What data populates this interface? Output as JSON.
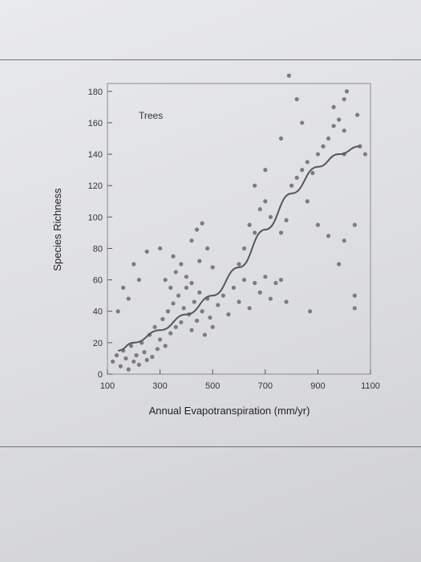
{
  "chart_data": {
    "type": "scatter",
    "annotation": "Trees",
    "xlabel": "Annual Evapotranspiration (mm/yr)",
    "ylabel": "Species Richness",
    "xlim": [
      100,
      1100
    ],
    "ylim": [
      0,
      185
    ],
    "x_ticks": [
      100,
      300,
      500,
      700,
      900,
      1100
    ],
    "y_ticks": [
      0,
      20,
      40,
      60,
      80,
      100,
      120,
      140,
      160,
      180
    ],
    "grid": false,
    "colors": {
      "points": "#7b7c80",
      "curve": "#55565c",
      "frame": "#8a8b8f"
    },
    "series": [
      {
        "points": [
          [
            120,
            8
          ],
          [
            135,
            12
          ],
          [
            150,
            5
          ],
          [
            160,
            15
          ],
          [
            170,
            10
          ],
          [
            180,
            3
          ],
          [
            190,
            18
          ],
          [
            200,
            8
          ],
          [
            210,
            12
          ],
          [
            220,
            6
          ],
          [
            230,
            20
          ],
          [
            240,
            14
          ],
          [
            250,
            9
          ],
          [
            260,
            25
          ],
          [
            270,
            11
          ],
          [
            280,
            30
          ],
          [
            290,
            16
          ],
          [
            300,
            22
          ],
          [
            310,
            35
          ],
          [
            320,
            18
          ],
          [
            330,
            40
          ],
          [
            340,
            26
          ],
          [
            350,
            45
          ],
          [
            360,
            30
          ],
          [
            370,
            50
          ],
          [
            380,
            33
          ],
          [
            390,
            42
          ],
          [
            400,
            55
          ],
          [
            410,
            38
          ],
          [
            420,
            28
          ],
          [
            430,
            46
          ],
          [
            440,
            34
          ],
          [
            450,
            52
          ],
          [
            460,
            40
          ],
          [
            470,
            25
          ],
          [
            480,
            48
          ],
          [
            490,
            36
          ],
          [
            500,
            30
          ],
          [
            520,
            44
          ],
          [
            540,
            50
          ],
          [
            560,
            38
          ],
          [
            580,
            55
          ],
          [
            600,
            46
          ],
          [
            620,
            60
          ],
          [
            640,
            42
          ],
          [
            660,
            58
          ],
          [
            680,
            52
          ],
          [
            700,
            62
          ],
          [
            720,
            48
          ],
          [
            740,
            58
          ],
          [
            760,
            60
          ],
          [
            780,
            46
          ],
          [
            320,
            60
          ],
          [
            340,
            55
          ],
          [
            360,
            65
          ],
          [
            380,
            70
          ],
          [
            400,
            62
          ],
          [
            420,
            85
          ],
          [
            440,
            92
          ],
          [
            460,
            96
          ],
          [
            350,
            75
          ],
          [
            300,
            80
          ],
          [
            250,
            78
          ],
          [
            220,
            60
          ],
          [
            180,
            48
          ],
          [
            160,
            55
          ],
          [
            140,
            40
          ],
          [
            200,
            70
          ],
          [
            420,
            58
          ],
          [
            450,
            72
          ],
          [
            480,
            80
          ],
          [
            500,
            68
          ],
          [
            600,
            70
          ],
          [
            620,
            80
          ],
          [
            640,
            95
          ],
          [
            660,
            90
          ],
          [
            680,
            105
          ],
          [
            700,
            110
          ],
          [
            720,
            100
          ],
          [
            760,
            90
          ],
          [
            780,
            98
          ],
          [
            800,
            120
          ],
          [
            820,
            125
          ],
          [
            840,
            130
          ],
          [
            860,
            135
          ],
          [
            880,
            128
          ],
          [
            900,
            140
          ],
          [
            920,
            145
          ],
          [
            940,
            150
          ],
          [
            960,
            158
          ],
          [
            980,
            162
          ],
          [
            1000,
            155
          ],
          [
            860,
            110
          ],
          [
            900,
            95
          ],
          [
            940,
            88
          ],
          [
            980,
            70
          ],
          [
            1000,
            85
          ],
          [
            1040,
            95
          ],
          [
            1040,
            50
          ],
          [
            1040,
            42
          ],
          [
            870,
            40
          ],
          [
            1000,
            175
          ],
          [
            1010,
            180
          ],
          [
            960,
            170
          ],
          [
            840,
            160
          ],
          [
            820,
            175
          ],
          [
            790,
            190
          ],
          [
            760,
            150
          ],
          [
            700,
            130
          ],
          [
            660,
            120
          ],
          [
            1060,
            145
          ],
          [
            1080,
            140
          ],
          [
            1050,
            165
          ],
          [
            1000,
            140
          ]
        ]
      }
    ],
    "trend": [
      [
        140,
        15
      ],
      [
        200,
        20
      ],
      [
        300,
        28
      ],
      [
        400,
        38
      ],
      [
        500,
        50
      ],
      [
        600,
        68
      ],
      [
        700,
        92
      ],
      [
        800,
        115
      ],
      [
        900,
        132
      ],
      [
        980,
        140
      ],
      [
        1060,
        145
      ]
    ]
  }
}
